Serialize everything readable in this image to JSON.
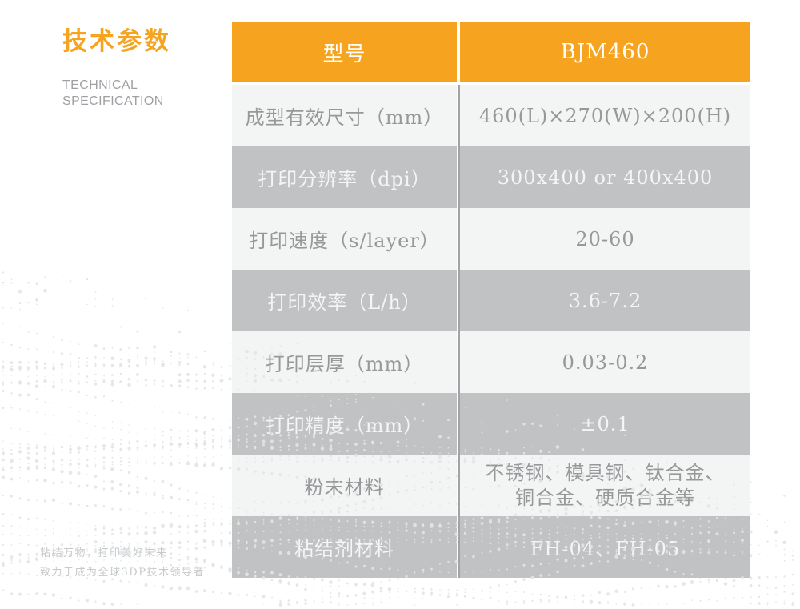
{
  "header": {
    "title_cn": "技术参数",
    "subtitle_line1": "TECHNICAL",
    "subtitle_line2": "SPECIFICATION"
  },
  "table": {
    "header": {
      "col1": "型号",
      "col2": "BJM460"
    },
    "rows": [
      {
        "label": "成型有效尺寸（mm）",
        "value": "460(L)×270(W)×200(H)"
      },
      {
        "label": "打印分辨率（dpi）",
        "value": "300x400 or 400x400"
      },
      {
        "label": "打印速度（s/layer）",
        "value": "20-60"
      },
      {
        "label": "打印效率（L/h）",
        "value": "3.6-7.2"
      },
      {
        "label": "打印层厚（mm）",
        "value": "0.03-0.2"
      },
      {
        "label": "打印精度（mm）",
        "value": "±0.1"
      },
      {
        "label": "粉末材料",
        "value_lines": [
          "不锈钢、模具钢、钛合金、",
          "铜合金、硬质合金等"
        ]
      },
      {
        "label": "粘结剂材料",
        "value": "FH-04、FH-05"
      }
    ]
  },
  "footer": {
    "slogan_line1": "粘结万物，打印美好未来",
    "slogan_line2": "致力于成为全球3DP技术领导者"
  },
  "colors": {
    "accent_orange": "#F6A41F",
    "row_dark": "#BEBFC1",
    "row_light": "#F2F3F3",
    "dot_gray": "#E3E4E6"
  }
}
